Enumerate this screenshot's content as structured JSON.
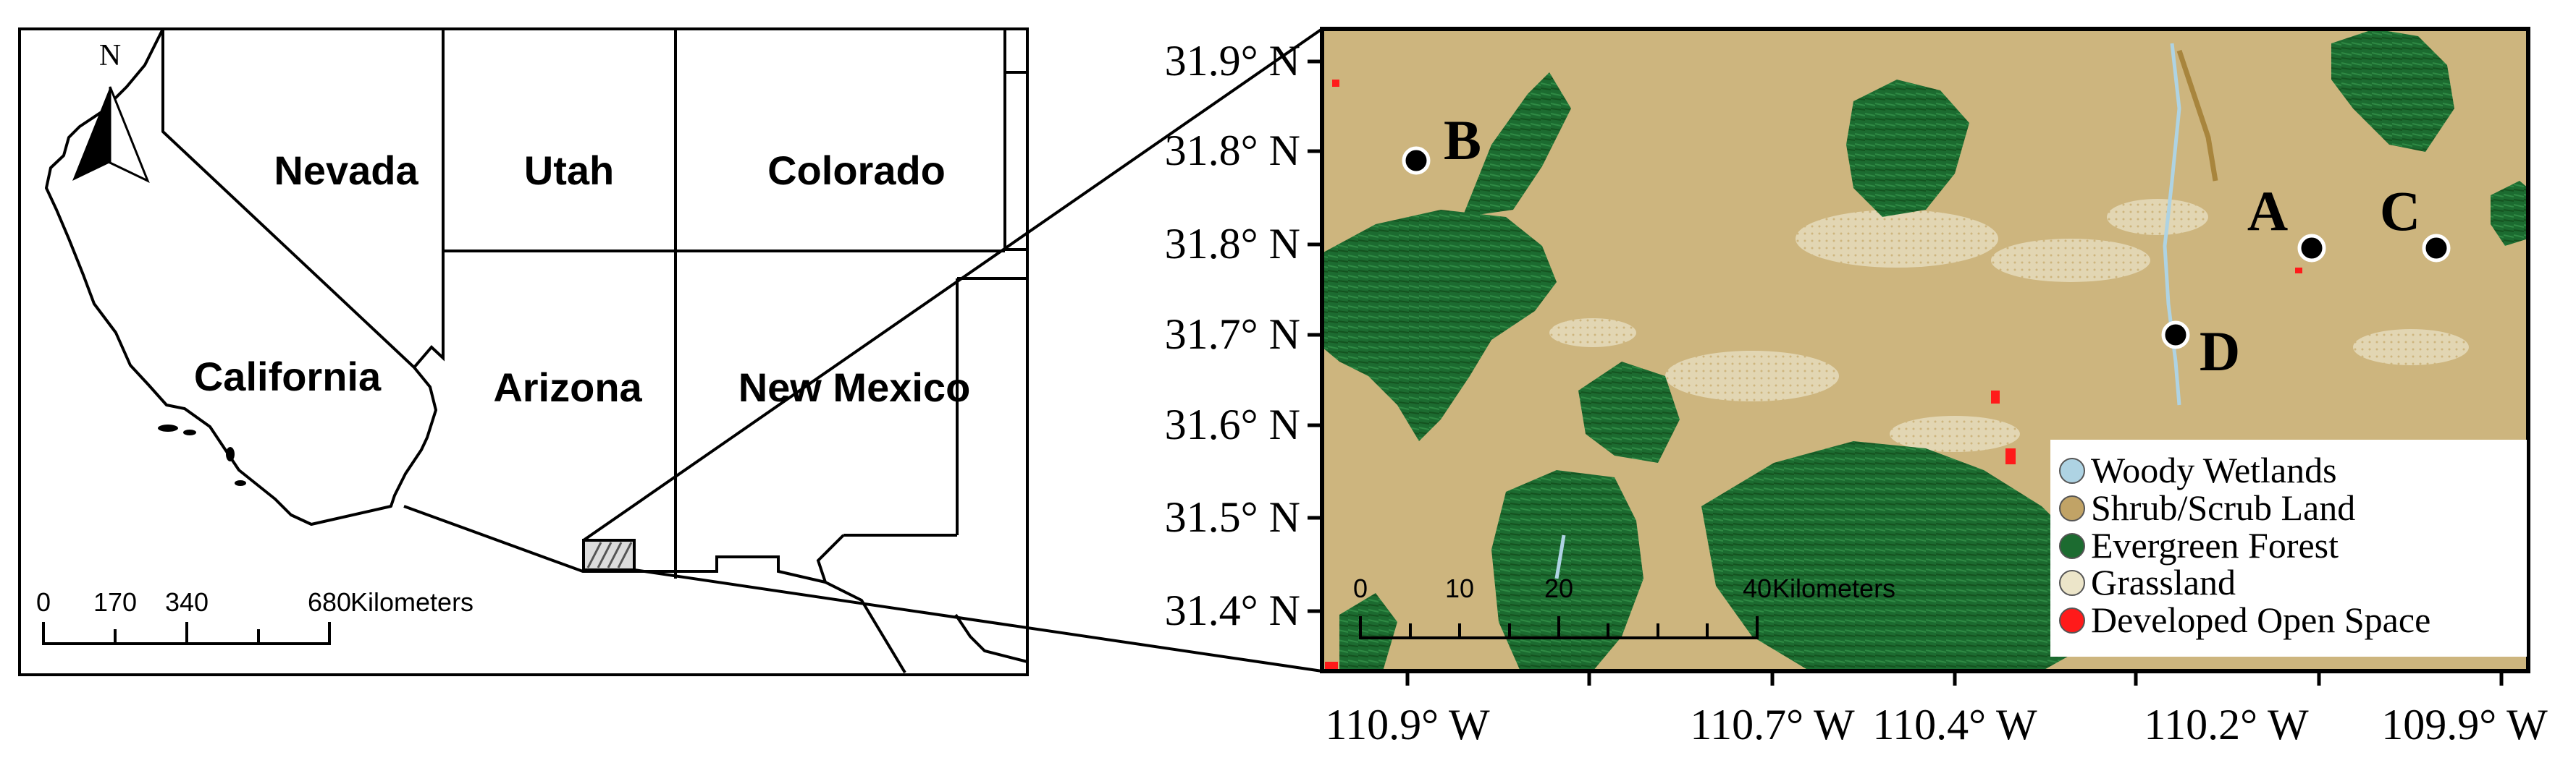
{
  "overview_map": {
    "north_label": "N",
    "states": [
      "Nevada",
      "Utah",
      "Colorado",
      "California",
      "Arizona",
      "New Mexico"
    ],
    "scale_bar": {
      "ticks": [
        "0",
        "170",
        "340",
        "680"
      ],
      "unit": "Kilometers"
    }
  },
  "detail_map": {
    "y_axis_labels": [
      "31.9° N",
      "31.8° N",
      "31.8° N",
      "31.7° N",
      "31.6° N",
      "31.5° N",
      "31.4° N"
    ],
    "x_axis_labels": [
      "110.9° W",
      "110.7° W",
      "110.4° W",
      "110.2° W",
      "109.9° W"
    ],
    "sites": [
      {
        "label": "A"
      },
      {
        "label": "B"
      },
      {
        "label": "C"
      },
      {
        "label": "D"
      }
    ],
    "legend": [
      {
        "label": "Woody Wetlands",
        "color": "#aed3e3"
      },
      {
        "label": "Shrub/Scrub Land",
        "color": "#c1a366"
      },
      {
        "label": "Evergreen Forest",
        "color": "#1c6b30"
      },
      {
        "label": "Grassland",
        "color": "#ece5c9"
      },
      {
        "label": "Developed Open Space",
        "color": "#ff1a1a"
      }
    ],
    "scale_bar": {
      "ticks": [
        "0",
        "10",
        "20",
        "40"
      ],
      "unit": "Kilometers"
    }
  },
  "colors": {
    "shrub_background": "#cdb57e",
    "forest": "#1c6b30",
    "grassland": "#ece5c9",
    "developed": "#ff1a1a",
    "wetlands": "#aed3e3"
  }
}
